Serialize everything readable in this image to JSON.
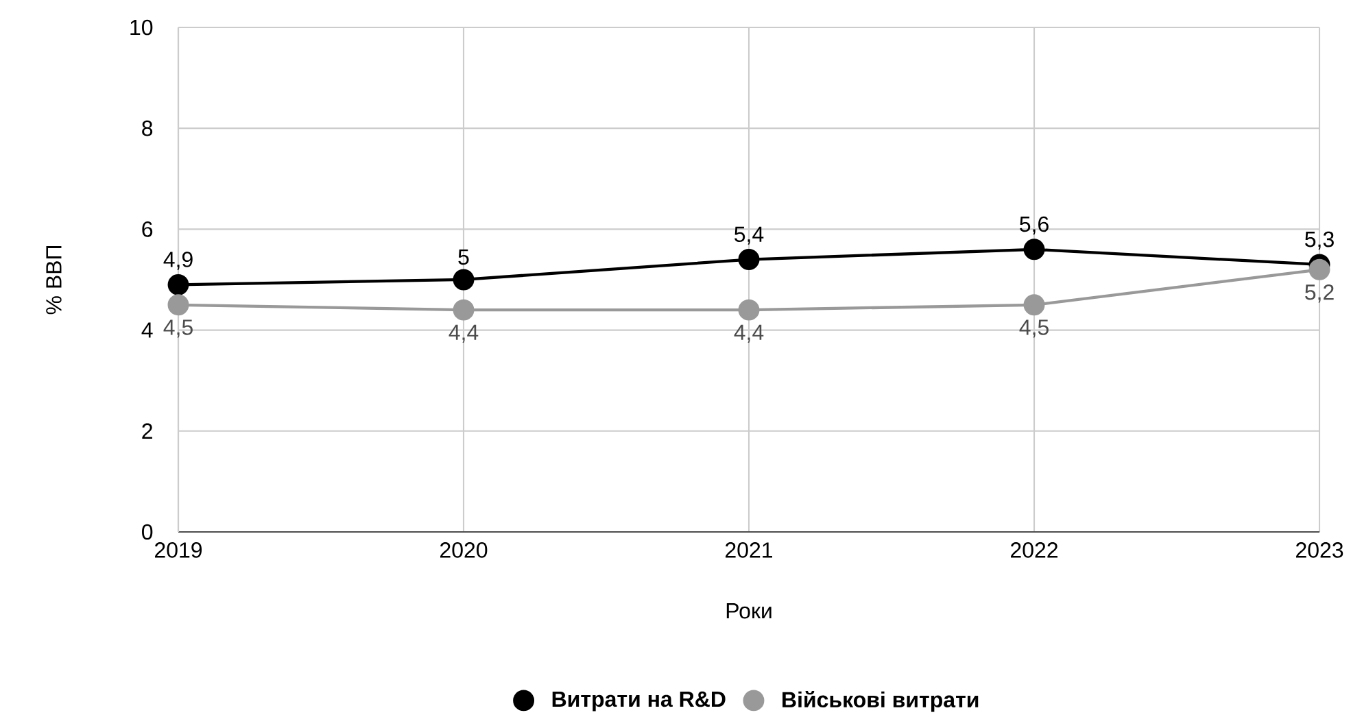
{
  "chart_data": {
    "type": "line",
    "xlabel": "Роки",
    "ylabel": "% ВВП",
    "x": [
      2019,
      2020,
      2021,
      2022,
      2023
    ],
    "series": [
      {
        "name": "Витрати на R&D",
        "color": "#000000",
        "values": [
          4.9,
          5,
          5.4,
          5.6,
          5.3
        ],
        "value_labels": [
          "4,9",
          "5",
          "5,4",
          "5,6",
          "5,3"
        ]
      },
      {
        "name": "Військові витрати",
        "color": "#999999",
        "values": [
          4.5,
          4.4,
          4.4,
          4.5,
          5.2
        ],
        "value_labels": [
          "4,5",
          "4,4",
          "4,4",
          "4,5",
          "5,2"
        ]
      }
    ],
    "xlim": [
      2019,
      2023
    ],
    "xticks": [
      2019,
      2020,
      2021,
      2022,
      2023
    ],
    "ylim": [
      0,
      10
    ],
    "yticks": [
      0,
      2,
      4,
      6,
      8,
      10
    ],
    "grid": true,
    "legend": "bottom",
    "marker": "circle",
    "line_style": "solid"
  }
}
